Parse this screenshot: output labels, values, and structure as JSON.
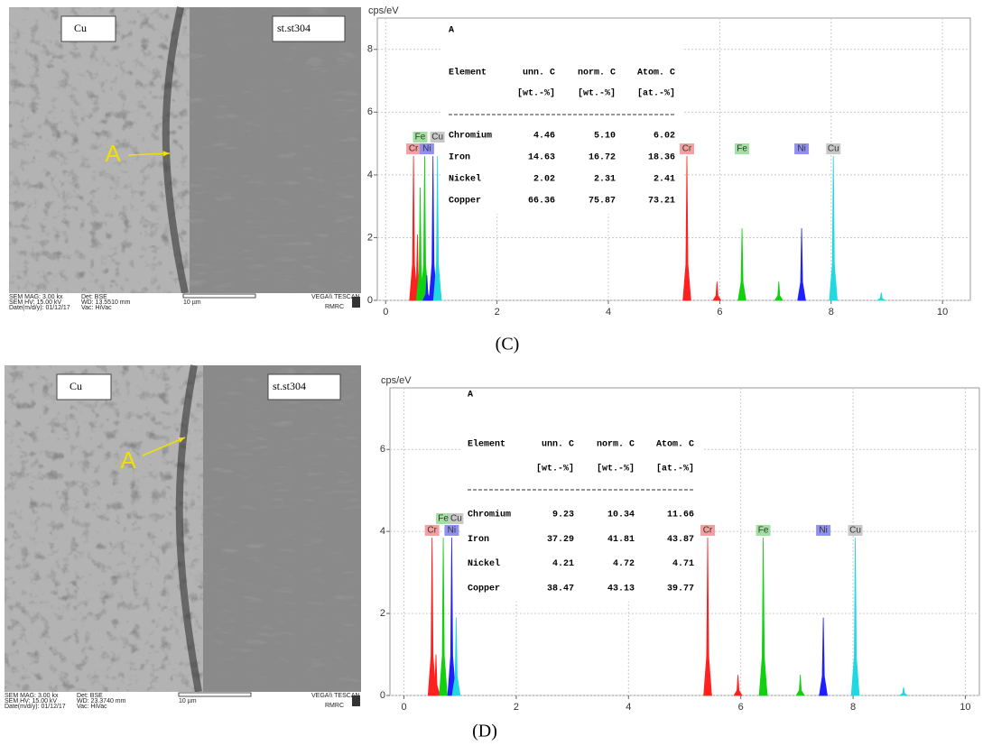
{
  "panels": [
    {
      "caption": "(C)",
      "image": {
        "left_label": "Cu",
        "right_label": "st.st304",
        "marker": "A",
        "footer": [
          "SEM MAG: 3.00 kx",
          "Det: BSE",
          "SEM HV: 15.00 kV",
          "WD: 13.5510 mm",
          "Date(m/d/y): 01/12/17",
          "Vac: HiVac",
          "10 µm",
          "VEGA\\\\ TESCAN",
          "RMRC"
        ]
      }
    },
    {
      "caption": "(D)",
      "image": {
        "left_label": "Cu",
        "right_label": "st.st304",
        "marker": "A",
        "footer": [
          "SEM MAG: 3.00 kx",
          "Det: BSE",
          "SEM HV: 15.00 kV",
          "WD: 23.3740 mm",
          "Date(m/d/y): 01/12/17",
          "Vac: HiVac",
          "10 µm",
          "VEGA\\\\ TESCAN",
          "RMRC"
        ]
      }
    }
  ],
  "chart_data": [
    {
      "type": "spectrum",
      "y_label": "cps/eV",
      "xlim": [
        -0.15,
        10.5
      ],
      "ylim": [
        0,
        9
      ],
      "xticks": [
        0,
        2,
        4,
        6,
        8,
        10
      ],
      "yticks": [
        0,
        2,
        4,
        6,
        8
      ],
      "grid": true,
      "series": [
        {
          "name": "Cr",
          "color": "#ff2020",
          "label_color": "#f4a0a0",
          "x": [
            0.5,
            0.57,
            5.41,
            5.41,
            5.95
          ],
          "values": [
            4.6,
            2.1,
            4.6,
            0.35,
            0.6
          ]
        },
        {
          "name": "Fe",
          "color": "#10d010",
          "label_color": "#a0e0a0",
          "x": [
            0.62,
            0.7,
            6.4,
            6.4,
            7.06
          ],
          "values": [
            3.6,
            4.6,
            2.3,
            1.0,
            0.6
          ]
        },
        {
          "name": "Ni",
          "color": "#2020ff",
          "label_color": "#9090ee",
          "x": [
            0.74,
            0.85,
            7.47,
            7.47
          ],
          "values": [
            0.8,
            4.6,
            2.3,
            0.15
          ]
        },
        {
          "name": "Cu",
          "color": "#20d8e0",
          "label_color": "#c8c8c8",
          "x": [
            0.93,
            0.93,
            8.04,
            8.04,
            8.9
          ],
          "values": [
            4.6,
            1.9,
            4.6,
            1.9,
            0.25
          ]
        }
      ],
      "table": {
        "title": "A",
        "columns": [
          "Element",
          "unn. C",
          "norm. C",
          "Atom. C"
        ],
        "units": [
          "[wt.-%]",
          "[wt.-%]",
          "[at.-%]"
        ],
        "rows": [
          [
            "Chromium",
            "4.46",
            "5.10",
            "6.02"
          ],
          [
            "Iron",
            "14.63",
            "16.72",
            "18.36"
          ],
          [
            "Nickel",
            "2.02",
            "2.31",
            "2.41"
          ],
          [
            "Copper",
            "66.36",
            "75.87",
            "73.21"
          ]
        ]
      }
    },
    {
      "type": "spectrum",
      "y_label": "cps/eV",
      "xlim": [
        -0.25,
        10.25
      ],
      "ylim": [
        0,
        7.5
      ],
      "xticks": [
        0,
        2,
        4,
        6,
        8,
        10
      ],
      "yticks": [
        0,
        2,
        4,
        6
      ],
      "grid": true,
      "series": [
        {
          "name": "Cr",
          "color": "#ff2020",
          "label_color": "#f4a0a0",
          "x": [
            0.5,
            0.57,
            5.41,
            5.41,
            5.95
          ],
          "values": [
            3.85,
            1.0,
            3.85,
            1.1,
            0.5
          ]
        },
        {
          "name": "Fe",
          "color": "#10d010",
          "label_color": "#a0e0a0",
          "x": [
            0.7,
            6.4,
            6.4,
            7.06
          ],
          "values": [
            3.85,
            3.85,
            2.9,
            0.5
          ]
        },
        {
          "name": "Ni",
          "color": "#2020ff",
          "label_color": "#9090ee",
          "x": [
            0.85,
            7.47,
            7.47
          ],
          "values": [
            3.85,
            1.9,
            0.25
          ]
        },
        {
          "name": "Cu",
          "color": "#20d8e0",
          "label_color": "#c8c8c8",
          "x": [
            0.93,
            8.04,
            8.04,
            8.9
          ],
          "values": [
            1.9,
            3.85,
            1.9,
            0.2
          ]
        }
      ],
      "table": {
        "title": "A",
        "columns": [
          "Element",
          "unn. C",
          "norm. C",
          "Atom. C"
        ],
        "units": [
          "[wt.-%]",
          "[wt.-%]",
          "[at.-%]"
        ],
        "rows": [
          [
            "Chromium",
            "9.23",
            "10.34",
            "11.66"
          ],
          [
            "Iron",
            "37.29",
            "41.81",
            "43.87"
          ],
          [
            "Nickel",
            "4.21",
            "4.72",
            "4.71"
          ],
          [
            "Copper",
            "38.47",
            "43.13",
            "39.77"
          ]
        ]
      }
    }
  ]
}
